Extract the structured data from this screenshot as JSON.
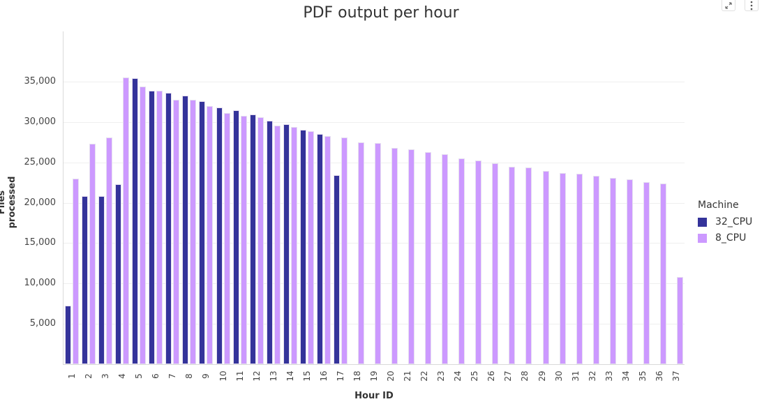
{
  "header": {
    "title": "PDF output per hour",
    "expand_icon": "expand-icon",
    "menu_icon": "more-vertical-icon"
  },
  "legend": {
    "title": "Machine",
    "items": [
      {
        "label": "32_CPU",
        "color": "#34339a"
      },
      {
        "label": "8_CPU",
        "color": "#cc99ff"
      }
    ]
  },
  "axes": {
    "xlabel": "Hour ID",
    "ylabel": "Files processed",
    "yticks": [
      "5,000",
      "10,000",
      "15,000",
      "20,000",
      "25,000",
      "30,000",
      "35,000"
    ]
  },
  "chart_data": {
    "type": "bar",
    "title": "PDF output per hour",
    "xlabel": "Hour ID",
    "ylabel": "Files processed",
    "ylim": [
      0,
      41000
    ],
    "grid": true,
    "legend_position": "right",
    "legend_title": "Machine",
    "categories": [
      "1",
      "2",
      "3",
      "4",
      "5",
      "6",
      "7",
      "8",
      "9",
      "10",
      "11",
      "12",
      "13",
      "14",
      "15",
      "16",
      "17",
      "18",
      "19",
      "20",
      "21",
      "22",
      "23",
      "24",
      "25",
      "26",
      "27",
      "28",
      "29",
      "30",
      "31",
      "32",
      "33",
      "34",
      "35",
      "36",
      "37"
    ],
    "series": [
      {
        "name": "32_CPU",
        "color": "#34339a",
        "values": [
          7300,
          20800,
          20800,
          22300,
          35400,
          33900,
          33600,
          33300,
          32600,
          31800,
          31500,
          30900,
          30200,
          29700,
          29000,
          28500,
          23400,
          null,
          null,
          null,
          null,
          null,
          null,
          null,
          null,
          null,
          null,
          null,
          null,
          null,
          null,
          null,
          null,
          null,
          null,
          null,
          null
        ]
      },
      {
        "name": "8_CPU",
        "color": "#cc99ff",
        "values": [
          23000,
          27300,
          28100,
          35500,
          34400,
          33900,
          32800,
          32800,
          32000,
          31100,
          30800,
          30600,
          29600,
          29400,
          28900,
          28300,
          28100,
          27500,
          27400,
          26800,
          26600,
          26300,
          26000,
          25500,
          25200,
          24900,
          24500,
          24400,
          23900,
          23700,
          23600,
          23300,
          23100,
          22900,
          22600,
          22400,
          10800
        ]
      }
    ]
  }
}
